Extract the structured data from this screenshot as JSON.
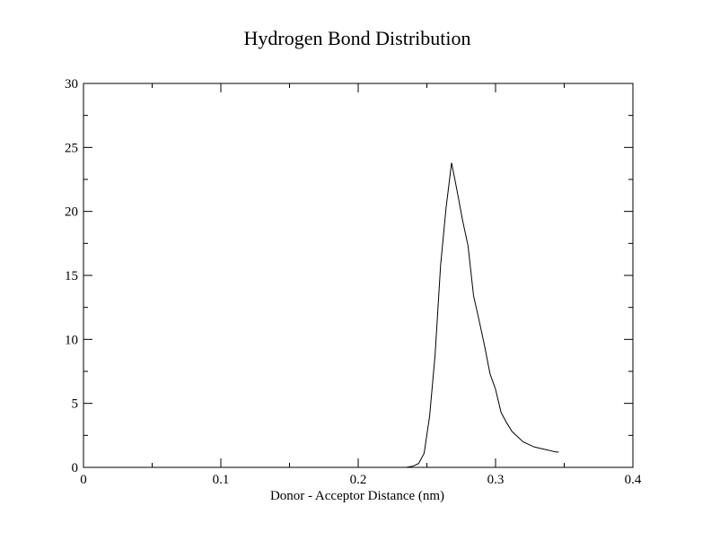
{
  "chart_data": {
    "type": "line",
    "title": "Hydrogen Bond Distribution",
    "xlabel": "Donor - Acceptor Distance (nm)",
    "ylabel": "",
    "xlim": [
      0,
      0.4
    ],
    "ylim": [
      0,
      30
    ],
    "x_ticks": [
      0,
      0.1,
      0.2,
      0.3,
      0.4
    ],
    "x_tick_labels": [
      "0",
      "0.1",
      "0.2",
      "0.3",
      "0.4"
    ],
    "y_ticks": [
      0,
      5,
      10,
      15,
      20,
      25,
      30
    ],
    "y_tick_labels": [
      "0",
      "5",
      "10",
      "15",
      "20",
      "25",
      "30"
    ],
    "grid": false,
    "series": [
      {
        "color": "#000000",
        "x": [
          0.235,
          0.24,
          0.244,
          0.248,
          0.252,
          0.256,
          0.26,
          0.264,
          0.268,
          0.272,
          0.276,
          0.28,
          0.284,
          0.288,
          0.292,
          0.296,
          0.3,
          0.304,
          0.308,
          0.312,
          0.316,
          0.32,
          0.324,
          0.328,
          0.332,
          0.336,
          0.34,
          0.344,
          0.346
        ],
        "y": [
          0.0,
          0.1,
          0.3,
          1.1,
          4.0,
          8.8,
          15.8,
          20.3,
          23.8,
          21.6,
          19.3,
          17.3,
          13.4,
          11.5,
          9.5,
          7.3,
          6.1,
          4.3,
          3.5,
          2.8,
          2.4,
          2.0,
          1.8,
          1.6,
          1.5,
          1.4,
          1.3,
          1.2,
          1.2
        ]
      }
    ]
  }
}
